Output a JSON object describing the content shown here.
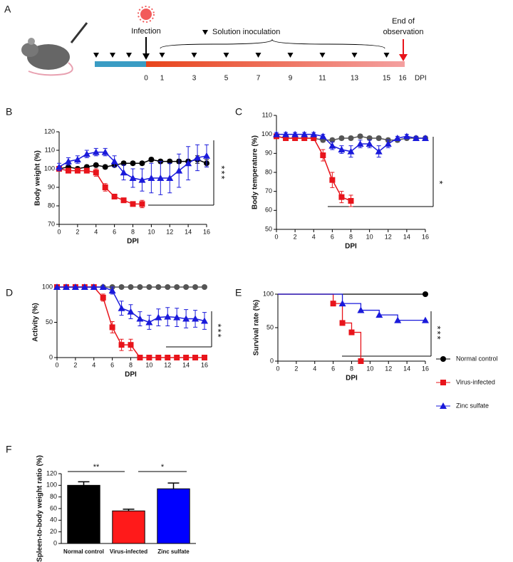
{
  "timeline": {
    "panel": "A",
    "infection": "Infection",
    "inoculation": "Solution inoculation",
    "end": [
      "End of",
      "observation"
    ],
    "unit": "DPI",
    "days": [
      0,
      1,
      3,
      5,
      7,
      9,
      11,
      13,
      15,
      16
    ]
  },
  "chart_data": [
    {
      "type": "line",
      "panel": "B",
      "y_label": "Body weight (%)",
      "x_label": "DPI",
      "significance": "***",
      "x": [
        0,
        1,
        2,
        3,
        4,
        5,
        6,
        7,
        8,
        9,
        10,
        11,
        12,
        13,
        14,
        15,
        16
      ],
      "xlim": [
        0,
        16
      ],
      "xticks": [
        0,
        2,
        4,
        6,
        8,
        10,
        12,
        14,
        16
      ],
      "ylim": [
        70,
        120
      ],
      "yticks": [
        70,
        80,
        90,
        100,
        110,
        120
      ],
      "series": [
        {
          "color": "#000000",
          "marker": "circle",
          "values": [
            100,
            101,
            100,
            101,
            102,
            101,
            102,
            103,
            103,
            103,
            105,
            104,
            104,
            104,
            104,
            105,
            103
          ],
          "errors": [
            1,
            1,
            1,
            1,
            1,
            1,
            1,
            1,
            1,
            1,
            1,
            1,
            1,
            1,
            1,
            2,
            2
          ]
        },
        {
          "color": "#e8141b",
          "marker": "square",
          "values": [
            100,
            99,
            99,
            99,
            98,
            90,
            85,
            83,
            81,
            81,
            null,
            null,
            null,
            null,
            null,
            null,
            null
          ],
          "errors": [
            1,
            1,
            1,
            1,
            2,
            2,
            1,
            1,
            1,
            2,
            null,
            null,
            null,
            null,
            null,
            null,
            null
          ]
        },
        {
          "color": "#1a1adb",
          "marker": "triangle",
          "values": [
            101,
            104,
            105,
            108,
            109,
            109,
            104,
            98,
            95,
            94,
            95,
            95,
            95,
            99,
            103,
            106,
            107
          ],
          "errors": [
            2,
            2,
            2,
            2,
            2,
            2,
            3,
            4,
            5,
            6,
            8,
            9,
            8,
            9,
            9,
            7,
            6
          ]
        }
      ]
    },
    {
      "type": "line",
      "panel": "C",
      "y_label": "Body temperature (%)",
      "x_label": "DPI",
      "significance": "*",
      "x": [
        0,
        1,
        2,
        3,
        4,
        5,
        6,
        7,
        8,
        9,
        10,
        11,
        12,
        13,
        14,
        15,
        16
      ],
      "xlim": [
        0,
        16
      ],
      "xticks": [
        0,
        2,
        4,
        6,
        8,
        10,
        12,
        14,
        16
      ],
      "ylim": [
        50,
        110
      ],
      "yticks": [
        50,
        60,
        70,
        80,
        90,
        100,
        110
      ],
      "series": [
        {
          "color": "#555555",
          "marker": "circle",
          "values": [
            99,
            98,
            98,
            98,
            98,
            97,
            97,
            98,
            98,
            99,
            98,
            98,
            97,
            97,
            98,
            98,
            98
          ],
          "errors": [
            1,
            1,
            1,
            1,
            1,
            1,
            1,
            1,
            1,
            1,
            1,
            1,
            1,
            1,
            1,
            1,
            1
          ]
        },
        {
          "color": "#e8141b",
          "marker": "square",
          "values": [
            99,
            98,
            98,
            98,
            98,
            89,
            76,
            67,
            65,
            null,
            null,
            null,
            null,
            null,
            null,
            null,
            null
          ],
          "errors": [
            1,
            1,
            1,
            1,
            1,
            3,
            4,
            3,
            3,
            null,
            null,
            null,
            null,
            null,
            null,
            null,
            null
          ]
        },
        {
          "color": "#1a1adb",
          "marker": "triangle",
          "values": [
            100,
            100,
            100,
            100,
            100,
            99,
            94,
            92,
            91,
            95,
            95,
            91,
            95,
            98,
            99,
            98,
            98
          ],
          "errors": [
            1,
            1,
            1,
            1,
            1,
            1,
            2,
            2,
            3,
            2,
            2,
            3,
            2,
            1,
            1,
            1,
            1
          ]
        }
      ]
    },
    {
      "type": "line",
      "panel": "D",
      "y_label": "Activity (%)",
      "x_label": "DPI",
      "significance": "***",
      "x": [
        0,
        1,
        2,
        3,
        4,
        5,
        6,
        7,
        8,
        9,
        10,
        11,
        12,
        13,
        14,
        15,
        16
      ],
      "xlim": [
        0,
        16
      ],
      "xticks": [
        0,
        2,
        4,
        6,
        8,
        10,
        12,
        14,
        16
      ],
      "ylim": [
        0,
        100
      ],
      "yticks": [
        0,
        50,
        100
      ],
      "series": [
        {
          "color": "#555555",
          "marker": "circle",
          "values": [
            100,
            100,
            100,
            100,
            100,
            100,
            100,
            100,
            100,
            100,
            100,
            100,
            100,
            100,
            100,
            100,
            100
          ],
          "errors": [
            0,
            0,
            0,
            0,
            0,
            0,
            0,
            0,
            0,
            0,
            0,
            0,
            0,
            0,
            0,
            0,
            0
          ]
        },
        {
          "color": "#e8141b",
          "marker": "square",
          "values": [
            100,
            100,
            100,
            100,
            100,
            85,
            43,
            18,
            18,
            0,
            0,
            0,
            0,
            0,
            0,
            0,
            0
          ],
          "errors": [
            0,
            0,
            0,
            0,
            0,
            5,
            8,
            8,
            8,
            0,
            0,
            0,
            0,
            0,
            0,
            0,
            0
          ]
        },
        {
          "color": "#1a1adb",
          "marker": "triangle",
          "values": [
            100,
            100,
            100,
            100,
            100,
            100,
            95,
            70,
            65,
            55,
            50,
            57,
            58,
            57,
            55,
            55,
            52
          ],
          "errors": [
            0,
            0,
            0,
            0,
            0,
            0,
            5,
            10,
            10,
            10,
            10,
            12,
            13,
            13,
            13,
            12,
            12
          ]
        }
      ]
    },
    {
      "type": "step",
      "panel": "E",
      "y_label": "Survival rate (%)",
      "x_label": "DPI",
      "significance": "***",
      "legend": "right",
      "xlim": [
        0,
        16
      ],
      "xticks": [
        0,
        2,
        4,
        6,
        8,
        10,
        12,
        14,
        16
      ],
      "ylim": [
        0,
        100
      ],
      "yticks": [
        0,
        50,
        100
      ],
      "series": [
        {
          "name": "Normal control",
          "color": "#000000",
          "marker": "circle",
          "x": [
            0,
            16
          ],
          "values": [
            100,
            100
          ]
        },
        {
          "name": "Virus-infected",
          "color": "#e8141b",
          "marker": "square",
          "x": [
            0,
            6,
            7,
            8,
            9
          ],
          "values": [
            100,
            86,
            57,
            43,
            0
          ]
        },
        {
          "name": "Zinc sulfate",
          "color": "#1a1adb",
          "marker": "triangle",
          "x": [
            0,
            7,
            9,
            11,
            13,
            16
          ],
          "values": [
            100,
            86,
            76,
            69,
            61,
            61
          ]
        }
      ]
    },
    {
      "type": "bar",
      "panel": "F",
      "y_label": "Spleen-to-body weight ratio (%)",
      "categories": [
        "Normal control",
        "Virus-infected",
        "Zinc sulfate"
      ],
      "values": [
        100,
        56,
        94
      ],
      "errors": [
        6,
        3,
        10
      ],
      "colors": [
        "#000000",
        "#ff1a1a",
        "#0000ff"
      ],
      "ylim": [
        0,
        120
      ],
      "yticks": [
        0,
        20,
        40,
        60,
        80,
        100,
        120
      ],
      "annotations": [
        "**",
        "*"
      ]
    }
  ]
}
